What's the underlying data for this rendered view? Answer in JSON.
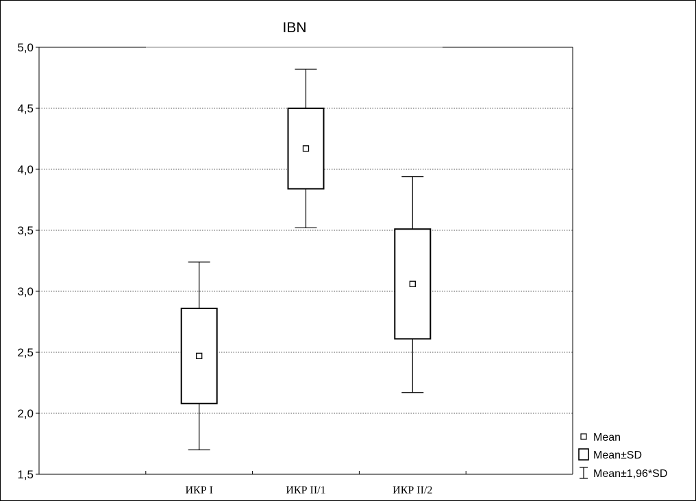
{
  "chart_data": {
    "type": "box",
    "title": "IBN",
    "xlabel": "",
    "ylabel": "",
    "ylim": [
      1.5,
      5.0
    ],
    "yticks": [
      "1,5",
      "2,0",
      "2,5",
      "3,0",
      "3,5",
      "4,0",
      "4,5",
      "5,0"
    ],
    "ytick_values": [
      1.5,
      2.0,
      2.5,
      3.0,
      3.5,
      4.0,
      4.5,
      5.0
    ],
    "grid": "horizontal dotted",
    "legend_position": "bottom-right",
    "categories": [
      "ИКР I",
      "ИКР II/1",
      "ИКР II/2"
    ],
    "groups": [
      {
        "category": "ИКР I",
        "mean": 2.47,
        "mean_minus_sd": 2.08,
        "mean_plus_sd": 2.86,
        "mean_minus_1_96sd": 1.7,
        "mean_plus_1_96sd": 3.24
      },
      {
        "category": "ИКР II/1",
        "mean": 4.17,
        "mean_minus_sd": 3.84,
        "mean_plus_sd": 4.5,
        "mean_minus_1_96sd": 3.52,
        "mean_plus_1_96sd": 4.82
      },
      {
        "category": "ИКР II/2",
        "mean": 3.06,
        "mean_minus_sd": 2.61,
        "mean_plus_sd": 3.51,
        "mean_minus_1_96sd": 2.17,
        "mean_plus_1_96sd": 3.94
      }
    ],
    "legend": [
      {
        "key": "mean",
        "label": "Mean"
      },
      {
        "key": "box",
        "label": "Mean±SD"
      },
      {
        "key": "whisker",
        "label": "Mean±1,96*SD"
      }
    ]
  }
}
